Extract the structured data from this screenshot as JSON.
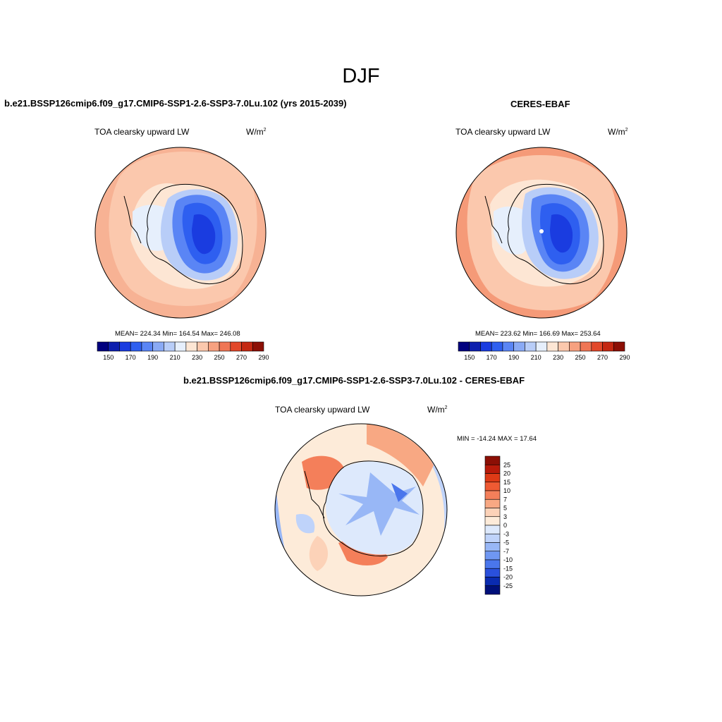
{
  "title": "DJF",
  "panels": [
    {
      "title": "b.e21.BSSP126cmip6.f09_g17.CMIP6-SSP1-2.6-SSP3-7.0Lu.102 (yrs 2015-2039)",
      "variable": "TOA clearsky upward LW",
      "units_base": "W/m",
      "units_exp": "2",
      "stats": "MEAN= 224.34  Min= 164.54  Max= 246.08",
      "colorbar_ticks": [
        "150",
        "170",
        "190",
        "210",
        "230",
        "250",
        "270",
        "290"
      ]
    },
    {
      "title": "CERES-EBAF",
      "variable": "TOA clearsky upward LW",
      "units_base": "W/m",
      "units_exp": "2",
      "stats": "MEAN= 223.62  Min= 166.69  Max= 253.64",
      "colorbar_ticks": [
        "150",
        "170",
        "190",
        "210",
        "230",
        "250",
        "270",
        "290"
      ]
    },
    {
      "title": "b.e21.BSSP126cmip6.f09_g17.CMIP6-SSP1-2.6-SSP3-7.0Lu.102 - CERES-EBAF",
      "variable": "TOA clearsky upward LW",
      "units_base": "W/m",
      "units_exp": "2",
      "stats": "MIN = -14.24 MAX =  17.64",
      "colorbar_ticks": [
        "25",
        "20",
        "15",
        "10",
        "7",
        "5",
        "3",
        "0",
        "-3",
        "-5",
        "-7",
        "-10",
        "-15",
        "-20",
        "-25"
      ]
    }
  ],
  "colors": {
    "abs_scale": [
      "#00007f",
      "#0d1fae",
      "#1a3ce0",
      "#2e5ff0",
      "#5a85f5",
      "#8aaaf5",
      "#b8cdf8",
      "#e6effc",
      "#fde6d4",
      "#fbc8ad",
      "#f7a180",
      "#ef7655",
      "#e2482a",
      "#c42812",
      "#8c0f05"
    ],
    "diff_scale": [
      "#8c0f05",
      "#b81a0a",
      "#dd3a16",
      "#ef5a33",
      "#f47f5a",
      "#f8a883",
      "#fcd2b8",
      "#fdebd9",
      "#dde9fc",
      "#bfd3fa",
      "#98b7f6",
      "#6f97f2",
      "#4a76ec",
      "#2a50dc",
      "#0a2bb0",
      "#00107a"
    ]
  }
}
